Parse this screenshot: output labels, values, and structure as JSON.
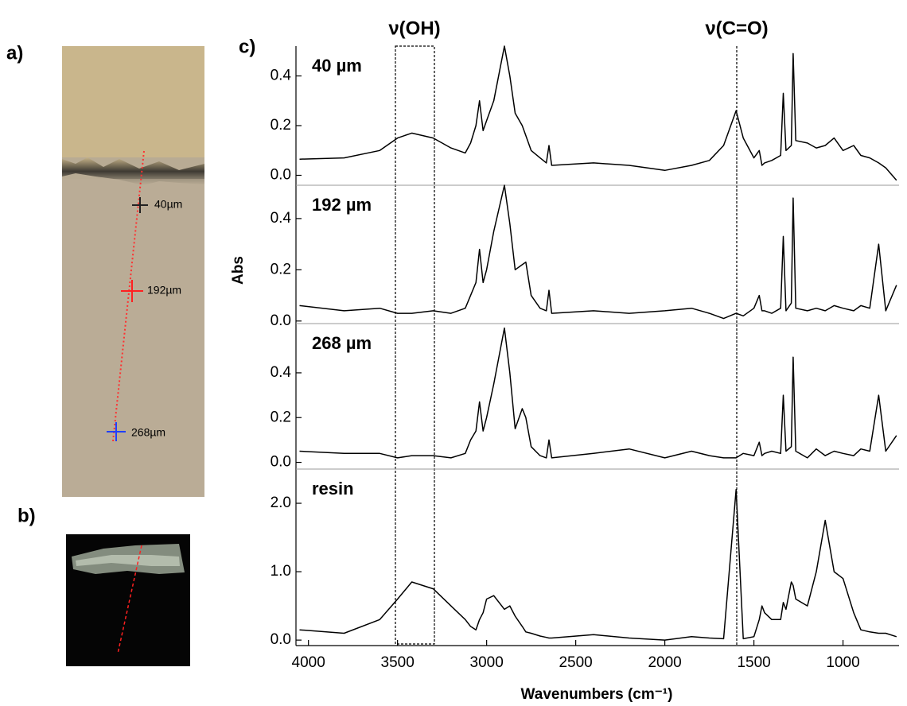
{
  "figure": {
    "panel_labels": [
      "a)",
      "b)",
      "c)"
    ],
    "image_labels": [
      "40µm",
      "192µm",
      "268µm"
    ],
    "y_label": "Abs",
    "x_label": "Wavenumbers (cm⁻¹)",
    "annotations": [
      "ν(OH)",
      "ν(C=O)"
    ]
  },
  "chart_data": [
    {
      "type": "line",
      "label": "40 µm",
      "color": "#000000",
      "xlim": [
        4070,
        690
      ],
      "ylim": [
        -0.04,
        0.52
      ],
      "yticks": [
        {
          "value": 0,
          "label": "0.0"
        },
        {
          "value": 0.2,
          "label": "0.2"
        },
        {
          "value": 0.4,
          "label": "0.4"
        }
      ],
      "x": [
        4050,
        3800,
        3600,
        3500,
        3420,
        3300,
        3200,
        3120,
        3090,
        3060,
        3040,
        3020,
        3000,
        2960,
        2900,
        2870,
        2840,
        2800,
        2780,
        2750,
        2700,
        2665,
        2650,
        2635,
        2400,
        2200,
        2000,
        1850,
        1750,
        1670,
        1600,
        1560,
        1500,
        1470,
        1455,
        1440,
        1400,
        1350,
        1335,
        1320,
        1290,
        1280,
        1265,
        1200,
        1150,
        1100,
        1050,
        1000,
        940,
        900,
        850,
        800,
        760,
        700
      ],
      "values": [
        0.065,
        0.07,
        0.1,
        0.15,
        0.17,
        0.15,
        0.11,
        0.09,
        0.13,
        0.2,
        0.3,
        0.18,
        0.22,
        0.3,
        0.52,
        0.4,
        0.25,
        0.2,
        0.16,
        0.1,
        0.07,
        0.05,
        0.12,
        0.04,
        0.05,
        0.04,
        0.02,
        0.04,
        0.06,
        0.12,
        0.26,
        0.15,
        0.07,
        0.1,
        0.04,
        0.05,
        0.06,
        0.08,
        0.33,
        0.1,
        0.12,
        0.49,
        0.14,
        0.13,
        0.11,
        0.12,
        0.15,
        0.1,
        0.12,
        0.08,
        0.07,
        0.05,
        0.03,
        -0.02
      ]
    },
    {
      "type": "line",
      "label": "192 µm",
      "color": "#000000",
      "xlim": [
        4070,
        690
      ],
      "ylim": [
        -0.01,
        0.53
      ],
      "yticks": [
        {
          "value": 0,
          "label": "0.0"
        },
        {
          "value": 0.2,
          "label": "0.2"
        },
        {
          "value": 0.4,
          "label": "0.4"
        }
      ],
      "x": [
        4050,
        3800,
        3600,
        3500,
        3420,
        3300,
        3200,
        3120,
        3090,
        3060,
        3040,
        3020,
        3000,
        2960,
        2900,
        2870,
        2840,
        2800,
        2780,
        2750,
        2700,
        2665,
        2650,
        2635,
        2400,
        2200,
        2000,
        1850,
        1750,
        1670,
        1600,
        1560,
        1500,
        1470,
        1455,
        1440,
        1400,
        1350,
        1335,
        1320,
        1290,
        1280,
        1265,
        1200,
        1150,
        1100,
        1050,
        1000,
        940,
        900,
        850,
        800,
        760,
        700
      ],
      "values": [
        0.06,
        0.04,
        0.05,
        0.03,
        0.03,
        0.04,
        0.03,
        0.05,
        0.1,
        0.15,
        0.28,
        0.15,
        0.2,
        0.35,
        0.53,
        0.38,
        0.2,
        0.22,
        0.23,
        0.1,
        0.05,
        0.04,
        0.12,
        0.03,
        0.04,
        0.03,
        0.04,
        0.05,
        0.03,
        0.01,
        0.03,
        0.02,
        0.05,
        0.1,
        0.04,
        0.04,
        0.03,
        0.05,
        0.33,
        0.04,
        0.07,
        0.48,
        0.05,
        0.04,
        0.05,
        0.04,
        0.06,
        0.05,
        0.04,
        0.06,
        0.05,
        0.3,
        0.04,
        0.14
      ]
    },
    {
      "type": "line",
      "label": "268 µm",
      "color": "#000000",
      "xlim": [
        4070,
        690
      ],
      "ylim": [
        -0.03,
        0.62
      ],
      "yticks": [
        {
          "value": 0,
          "label": "0.0"
        },
        {
          "value": 0.2,
          "label": "0.2"
        },
        {
          "value": 0.4,
          "label": "0.4"
        }
      ],
      "x": [
        4050,
        3800,
        3600,
        3500,
        3420,
        3300,
        3200,
        3120,
        3090,
        3060,
        3040,
        3020,
        3000,
        2960,
        2900,
        2870,
        2840,
        2800,
        2780,
        2750,
        2700,
        2665,
        2650,
        2635,
        2400,
        2200,
        2000,
        1850,
        1750,
        1670,
        1600,
        1560,
        1500,
        1470,
        1455,
        1440,
        1400,
        1350,
        1335,
        1320,
        1290,
        1280,
        1265,
        1200,
        1150,
        1100,
        1050,
        1000,
        940,
        900,
        850,
        800,
        760,
        700
      ],
      "values": [
        0.05,
        0.04,
        0.04,
        0.02,
        0.03,
        0.03,
        0.02,
        0.04,
        0.1,
        0.14,
        0.27,
        0.14,
        0.2,
        0.35,
        0.6,
        0.4,
        0.15,
        0.24,
        0.2,
        0.07,
        0.03,
        0.02,
        0.1,
        0.02,
        0.04,
        0.06,
        0.02,
        0.05,
        0.03,
        0.02,
        0.02,
        0.04,
        0.03,
        0.09,
        0.03,
        0.04,
        0.05,
        0.04,
        0.3,
        0.05,
        0.07,
        0.47,
        0.05,
        0.02,
        0.06,
        0.03,
        0.05,
        0.04,
        0.03,
        0.06,
        0.05,
        0.3,
        0.05,
        0.12
      ]
    },
    {
      "type": "line",
      "label": "resin",
      "color": "#000000",
      "xlim": [
        4070,
        690
      ],
      "ylim": [
        -0.08,
        2.5
      ],
      "yticks": [
        {
          "value": 0,
          "label": "0.0"
        },
        {
          "value": 1,
          "label": "1.0"
        },
        {
          "value": 2,
          "label": "2.0"
        }
      ],
      "xticks": [
        4000,
        3500,
        3000,
        2500,
        2000,
        1500,
        1000
      ],
      "x": [
        4050,
        3800,
        3600,
        3500,
        3420,
        3300,
        3200,
        3120,
        3090,
        3060,
        3040,
        3020,
        3000,
        2960,
        2900,
        2870,
        2840,
        2800,
        2780,
        2750,
        2700,
        2665,
        2650,
        2635,
        2400,
        2200,
        2000,
        1850,
        1750,
        1670,
        1600,
        1560,
        1500,
        1470,
        1455,
        1440,
        1400,
        1350,
        1335,
        1320,
        1290,
        1280,
        1265,
        1200,
        1150,
        1100,
        1050,
        1000,
        940,
        900,
        850,
        800,
        760,
        700
      ],
      "values": [
        0.15,
        0.1,
        0.3,
        0.6,
        0.85,
        0.75,
        0.5,
        0.3,
        0.2,
        0.15,
        0.3,
        0.4,
        0.6,
        0.65,
        0.45,
        0.5,
        0.35,
        0.2,
        0.12,
        0.1,
        0.06,
        0.04,
        0.03,
        0.03,
        0.08,
        0.03,
        0.0,
        0.05,
        0.03,
        0.02,
        2.2,
        0.02,
        0.05,
        0.3,
        0.5,
        0.4,
        0.3,
        0.3,
        0.55,
        0.45,
        0.85,
        0.8,
        0.6,
        0.5,
        1.0,
        1.75,
        1.0,
        0.9,
        0.4,
        0.15,
        0.12,
        0.1,
        0.1,
        0.05
      ]
    }
  ]
}
